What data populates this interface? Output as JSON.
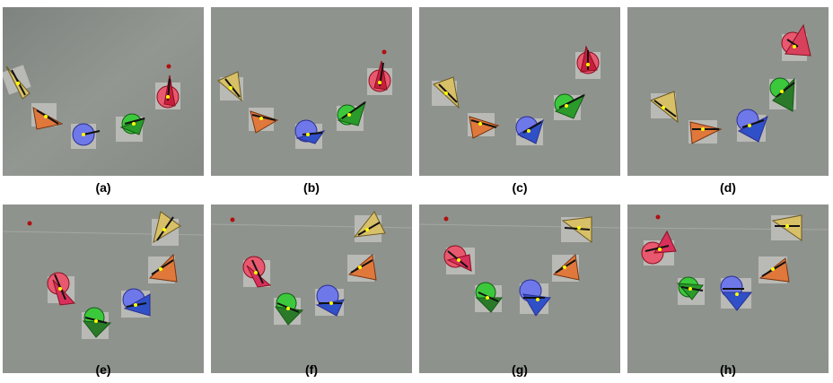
{
  "figure": {
    "captions": [
      "(a)",
      "(b)",
      "(c)",
      "(d)",
      "(e)",
      "(f)",
      "(g)",
      "(h)"
    ]
  },
  "robot_colors": {
    "yellow": "#d8c068",
    "orange": "#e0783c",
    "blue": "#6e78e8",
    "green": "#3cc83c",
    "red": "#e8586e",
    "target": "#b01010"
  }
}
